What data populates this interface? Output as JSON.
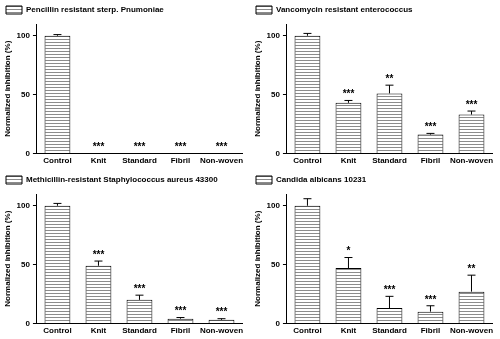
{
  "chart_data": [
    {
      "type": "bar",
      "ylabel": "Normalized inhibition (%)",
      "categories": [
        "Control",
        "Knit",
        "Standard",
        "Fibril",
        "Non-woven"
      ],
      "series": [
        {
          "name": "Pencillin resistant sterp. Pnumoniae",
          "color": "#8c8c8c",
          "values": [
            100,
            0,
            0,
            0,
            0
          ],
          "errors": [
            1,
            0,
            0,
            0,
            0
          ],
          "significance": [
            null,
            "***",
            "***",
            "***",
            "***"
          ]
        }
      ],
      "ylim": [
        0,
        110
      ],
      "yticks": [
        0,
        50,
        100
      ],
      "grid": false,
      "legend": "upper left"
    },
    {
      "type": "bar",
      "ylabel": "Normalized inhibition (%)",
      "categories": [
        "Control",
        "Knit",
        "Standard",
        "Fibril",
        "Non-woven"
      ],
      "series": [
        {
          "name": "Vancomycin resistant enterococcus",
          "color": "#8c8c8c",
          "values": [
            100,
            43,
            51,
            16,
            33
          ],
          "errors": [
            2,
            2,
            7,
            1,
            3
          ],
          "significance": [
            null,
            "***",
            "**",
            "***",
            "***"
          ]
        }
      ],
      "ylim": [
        0,
        110
      ],
      "yticks": [
        0,
        50,
        100
      ],
      "grid": false,
      "legend": "upper left"
    },
    {
      "type": "bar",
      "ylabel": "Normalized inhibition (%)",
      "categories": [
        "Control",
        "Knit",
        "Standard",
        "Fibril",
        "Non-woven"
      ],
      "series": [
        {
          "name": "Methicillin-resistant Staphylococcus aureus 43300",
          "color": "#8c8c8c",
          "values": [
            100,
            49,
            20,
            4,
            3
          ],
          "errors": [
            2,
            4,
            4,
            1,
            1
          ],
          "significance": [
            null,
            "***",
            "***",
            "***",
            "***"
          ]
        }
      ],
      "ylim": [
        0,
        110
      ],
      "yticks": [
        0,
        50,
        100
      ],
      "grid": false,
      "legend": "upper left"
    },
    {
      "type": "bar",
      "ylabel": "Normalized inhibition (%)",
      "categories": [
        "Control",
        "Knit",
        "Standard",
        "Fibril",
        "Non-woven"
      ],
      "series": [
        {
          "name": "Candida albicans 10231",
          "color": "#8c8c8c",
          "values": [
            100,
            47,
            13,
            10,
            27
          ],
          "errors": [
            6,
            9,
            10,
            5,
            14
          ],
          "significance": [
            null,
            "*",
            "***",
            "***",
            "**"
          ]
        }
      ],
      "ylim": [
        0,
        110
      ],
      "yticks": [
        0,
        50,
        100
      ],
      "grid": false,
      "legend": "upper left"
    }
  ]
}
